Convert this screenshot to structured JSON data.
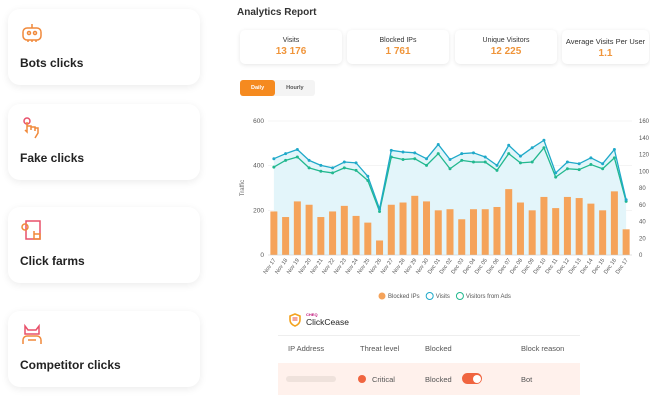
{
  "cards": [
    {
      "label": "Bots clicks",
      "icon": "robot-icon"
    },
    {
      "label": "Fake clicks",
      "icon": "hand-pointer-icon"
    },
    {
      "label": "Click farms",
      "icon": "click-farm-icon"
    },
    {
      "label": "Competitor clicks",
      "icon": "devil-icon"
    }
  ],
  "report": {
    "title": "Analytics Report",
    "stats": [
      {
        "label": "Visits",
        "value": "13 176"
      },
      {
        "label": "Blocked IPs",
        "value": "1 761"
      },
      {
        "label": "Unique Visitors",
        "value": "12 225"
      },
      {
        "label": "Average Visits Per User",
        "value": "1.1"
      }
    ],
    "tabs": [
      "Daily",
      "Hourly"
    ],
    "active_tab": "Daily"
  },
  "chart_data": {
    "type": "bar+line",
    "ylabel": "Traffic",
    "ylim": [
      0,
      600
    ],
    "y2lim": [
      0,
      160
    ],
    "yticks": [
      0,
      200,
      400,
      600
    ],
    "y2ticks": [
      0,
      20,
      40,
      60,
      80,
      100,
      120,
      140,
      160
    ],
    "categories": [
      "Nov 17",
      "Nov 18",
      "Nov 19",
      "Nov 20",
      "Nov 21",
      "Nov 22",
      "Nov 23",
      "Nov 24",
      "Nov 25",
      "Nov 26",
      "Nov 27",
      "Nov 28",
      "Nov 29",
      "Nov 30",
      "Dec 01",
      "Dec 02",
      "Dec 03",
      "Dec 04",
      "Dec 05",
      "Dec 06",
      "Dec 07",
      "Dec 08",
      "Dec 09",
      "Dec 10",
      "Dec 11",
      "Dec 12",
      "Dec 13",
      "Dec 14",
      "Dec 15",
      "Dec 16",
      "Dec 17"
    ],
    "series": [
      {
        "name": "Blocked IPs",
        "axis": "left",
        "color": "#f5a35a",
        "values": [
          195,
          170,
          240,
          225,
          170,
          195,
          220,
          175,
          145,
          65,
          225,
          235,
          265,
          240,
          200,
          205,
          160,
          205,
          205,
          215,
          295,
          235,
          200,
          260,
          210,
          260,
          255,
          230,
          200,
          285,
          115
        ]
      },
      {
        "name": "Visits",
        "axis": "right",
        "color": "#1fa9c9",
        "values": [
          115,
          121,
          126,
          113,
          107,
          104,
          111,
          110,
          94,
          55,
          125,
          123,
          122,
          115,
          132,
          114,
          121,
          122,
          117,
          107,
          131,
          118,
          128,
          137,
          98,
          111,
          109,
          116,
          109,
          126,
          66
        ]
      },
      {
        "name": "Visitors from Ads",
        "axis": "right",
        "color": "#22b88f",
        "values": [
          105,
          113,
          117,
          104,
          100,
          98,
          104,
          101,
          89,
          52,
          117,
          114,
          115,
          107,
          121,
          103,
          113,
          111,
          111,
          101,
          121,
          110,
          111,
          128,
          93,
          103,
          102,
          108,
          103,
          116,
          64
        ]
      }
    ],
    "legend": "bottom",
    "grid": true
  },
  "panel": {
    "brand_small": "CHEQ",
    "brand": "ClickCease",
    "columns": [
      "IP Address",
      "Threat level",
      "Blocked",
      "Block reason"
    ],
    "row": {
      "threat": "Critical",
      "blocked": "Blocked",
      "reason": "Bot",
      "toggle_on": true
    }
  }
}
